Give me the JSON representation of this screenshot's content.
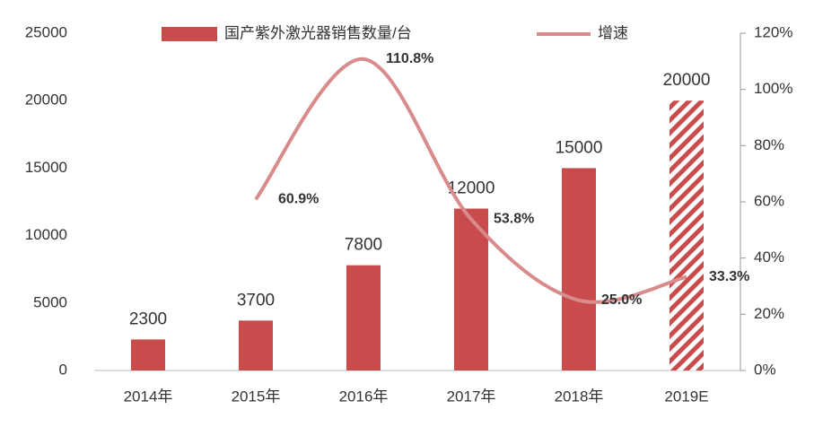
{
  "chart_data": {
    "type": "bar-line",
    "categories": [
      "2014年",
      "2015年",
      "2016年",
      "2017年",
      "2018年",
      "2019E"
    ],
    "series": [
      {
        "name": "国产紫外激光器销售数量/台",
        "color": "#c94c4c",
        "values": [
          2300,
          3700,
          7800,
          12000,
          15000,
          20000
        ],
        "hatched": [
          false,
          false,
          false,
          false,
          false,
          true
        ]
      },
      {
        "name": "增速",
        "color": "#d98b8c",
        "axis": "y2",
        "values": [
          null,
          60.9,
          110.8,
          53.8,
          25.0,
          33.3
        ],
        "value_labels": [
          null,
          "60.9%",
          "110.8%",
          "53.8%",
          "25.0%",
          "33.3%"
        ]
      }
    ],
    "ylim": [
      0,
      25000
    ],
    "yticks": [
      0,
      5000,
      10000,
      15000,
      20000,
      25000
    ],
    "y2lim": [
      0,
      120
    ],
    "y2ticks": [
      {
        "value": 0,
        "label": "0%"
      },
      {
        "value": 20,
        "label": "20%"
      },
      {
        "value": 40,
        "label": "40%"
      },
      {
        "value": 60,
        "label": "60%"
      },
      {
        "value": 80,
        "label": "80%"
      },
      {
        "value": 100,
        "label": "100%"
      },
      {
        "value": 120,
        "label": "120%"
      }
    ],
    "legend": "top"
  }
}
